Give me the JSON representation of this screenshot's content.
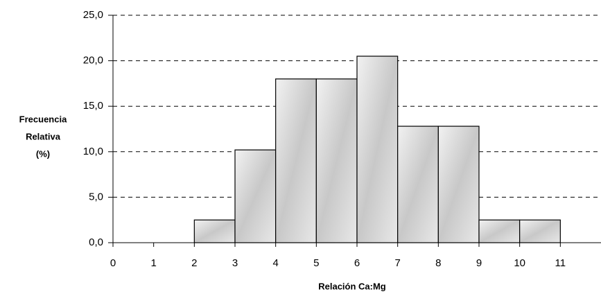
{
  "chart_data": {
    "type": "histogram",
    "bins": [
      0,
      1,
      2,
      3,
      4,
      5,
      6,
      7,
      8,
      9,
      10,
      11
    ],
    "values": [
      0,
      0,
      2.5,
      10.2,
      18,
      18,
      20.5,
      12.8,
      12.8,
      2.5,
      2.5
    ],
    "color": "#d9d9d9",
    "x_label": "Relación Ca:Mg",
    "y_label": [
      "Frecuencia",
      "Relativa",
      "(%)"
    ],
    "xlim": [
      0,
      12
    ],
    "ylim": [
      0,
      25
    ],
    "yticks": [
      {
        "value": 0,
        "label": "0,0"
      },
      {
        "value": 5,
        "label": "5,0"
      },
      {
        "value": 10,
        "label": "10,0"
      },
      {
        "value": 15,
        "label": "15,0"
      },
      {
        "value": 20,
        "label": "20,0"
      },
      {
        "value": 25,
        "label": "25,0"
      }
    ],
    "grid": true
  }
}
